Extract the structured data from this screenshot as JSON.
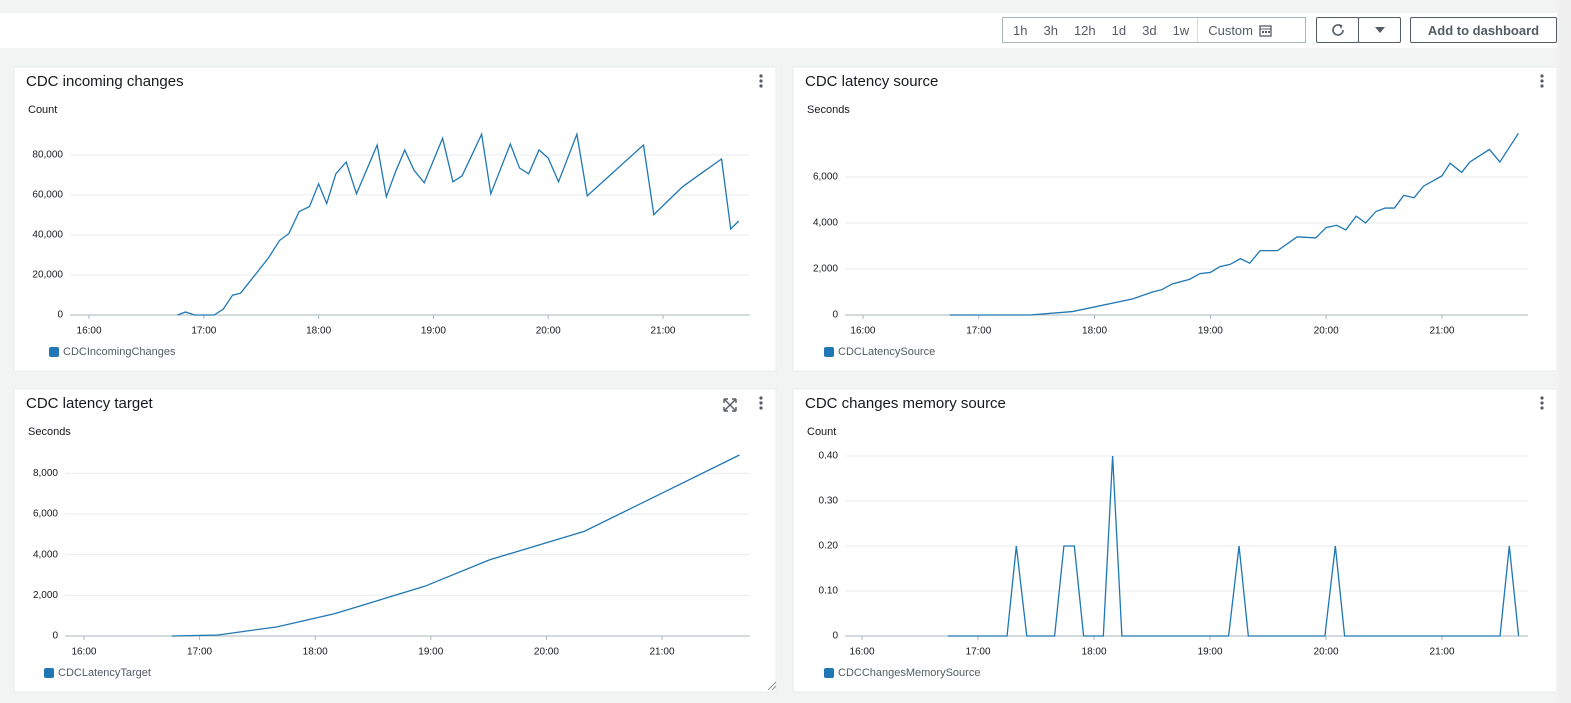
{
  "toolbar": {
    "ranges": [
      "1h",
      "3h",
      "12h",
      "1d",
      "3d",
      "1w"
    ],
    "custom": "Custom",
    "add_button": "Add to dashboard"
  },
  "chart_data": [
    {
      "type": "line",
      "title": "CDC incoming changes",
      "y_label": "Count",
      "x": [
        16.77,
        16.84,
        16.92,
        17.09,
        17.17,
        17.25,
        17.32,
        17.56,
        17.66,
        17.74,
        17.83,
        17.92,
        18.0,
        18.07,
        18.15,
        18.24,
        18.33,
        18.51,
        18.59,
        18.67,
        18.75,
        18.83,
        18.92,
        19.08,
        19.17,
        19.25,
        19.42,
        19.5,
        19.67,
        19.75,
        19.83,
        19.92,
        20.0,
        20.09,
        20.25,
        20.34,
        20.83,
        20.92,
        21.17,
        21.34,
        21.51,
        21.59,
        21.66
      ],
      "series": [
        {
          "name": "CDCIncomingChanges",
          "color": "#1f77b4",
          "values": [
            0,
            1500,
            0,
            0,
            3000,
            9900,
            10900,
            28300,
            37300,
            40700,
            51700,
            54200,
            65600,
            55700,
            70600,
            76500,
            60600,
            85000,
            59100,
            71600,
            82500,
            72500,
            66100,
            88400,
            66600,
            69600,
            90400,
            60600,
            85500,
            73500,
            70600,
            82500,
            78500,
            66600,
            90400,
            59600,
            85000,
            50200,
            64100,
            71100,
            78000,
            43000,
            47000
          ]
        }
      ],
      "xlim": [
        15.834,
        21.758
      ],
      "xticks": [
        {
          "value": 16,
          "label": "16:00"
        },
        {
          "value": 17,
          "label": "17:00"
        },
        {
          "value": 18,
          "label": "18:00"
        },
        {
          "value": 19,
          "label": "19:00"
        },
        {
          "value": 20,
          "label": "20:00"
        },
        {
          "value": 21,
          "label": "21:00"
        }
      ],
      "ylim": [
        0,
        92000
      ],
      "yticks": [
        0,
        {
          "value": 20000,
          "label": "20,000"
        },
        {
          "value": 40000,
          "label": "40,000"
        },
        {
          "value": 60000,
          "label": "60,000"
        },
        {
          "value": 80000,
          "label": "80,000"
        }
      ],
      "grid": true
    },
    {
      "type": "line",
      "title": "CDC latency source",
      "y_label": "Seconds",
      "x": [
        16.75,
        17.44,
        17.81,
        18.33,
        18.5,
        18.58,
        18.67,
        18.82,
        18.91,
        19.0,
        19.08,
        19.17,
        19.26,
        19.34,
        19.43,
        19.58,
        19.75,
        19.91,
        20.0,
        20.09,
        20.17,
        20.26,
        20.34,
        20.43,
        20.51,
        20.59,
        20.67,
        20.76,
        20.84,
        21.0,
        21.07,
        21.17,
        21.24,
        21.41,
        21.5,
        21.66
      ],
      "series": [
        {
          "name": "CDCLatencySource",
          "color": "#1f77b4",
          "values": [
            0,
            0,
            150,
            700,
            1000,
            1100,
            1350,
            1550,
            1800,
            1850,
            2100,
            2200,
            2450,
            2250,
            2800,
            2800,
            3400,
            3350,
            3800,
            3900,
            3700,
            4300,
            4000,
            4500,
            4650,
            4650,
            5200,
            5100,
            5600,
            6050,
            6600,
            6200,
            6650,
            7200,
            6650,
            7900
          ]
        }
      ],
      "xlim": [
        15.845,
        21.743
      ],
      "xticks": [
        {
          "value": 16,
          "label": "16:00"
        },
        {
          "value": 17,
          "label": "17:00"
        },
        {
          "value": 18,
          "label": "18:00"
        },
        {
          "value": 19,
          "label": "19:00"
        },
        {
          "value": 20,
          "label": "20:00"
        },
        {
          "value": 21,
          "label": "21:00"
        }
      ],
      "ylim": [
        0,
        8000
      ],
      "yticks": [
        0,
        {
          "value": 2000,
          "label": "2,000"
        },
        {
          "value": 4000,
          "label": "4,000"
        },
        {
          "value": 6000,
          "label": "6,000"
        }
      ],
      "grid": true
    },
    {
      "type": "line",
      "title": "CDC latency target",
      "y_label": "Seconds",
      "x": [
        16.76,
        17.16,
        17.67,
        18.17,
        18.95,
        19.51,
        20.33,
        21.67
      ],
      "series": [
        {
          "name": "CDCLatencyTarget",
          "color": "#1f77b4",
          "values": [
            0,
            50,
            450,
            1100,
            2450,
            3750,
            5150,
            8900
          ]
        }
      ],
      "xlim": [
        15.836,
        21.761
      ],
      "xticks": [
        {
          "value": 16,
          "label": "16:00"
        },
        {
          "value": 17,
          "label": "17:00"
        },
        {
          "value": 18,
          "label": "18:00"
        },
        {
          "value": 19,
          "label": "19:00"
        },
        {
          "value": 20,
          "label": "20:00"
        },
        {
          "value": 21,
          "label": "21:00"
        }
      ],
      "ylim": [
        0,
        8900
      ],
      "yticks": [
        0,
        {
          "value": 2000,
          "label": "2,000"
        },
        {
          "value": 4000,
          "label": "4,000"
        },
        {
          "value": 6000,
          "label": "6,000"
        },
        {
          "value": 8000,
          "label": "8,000"
        }
      ],
      "grid": true
    },
    {
      "type": "line",
      "title": "CDC changes memory source",
      "y_label": "Count",
      "x": [
        16.74,
        17.25,
        17.33,
        17.42,
        17.66,
        17.74,
        17.83,
        17.91,
        18.08,
        18.16,
        18.24,
        19.16,
        19.25,
        19.33,
        19.99,
        20.08,
        20.16,
        21.5,
        21.58,
        21.66
      ],
      "series": [
        {
          "name": "CDCChangesMemorySource",
          "color": "#1f77b4",
          "values": [
            0,
            0,
            0.2,
            0,
            0,
            0.2,
            0.2,
            0,
            0,
            0.4,
            0,
            0,
            0.2,
            0,
            0,
            0.2,
            0,
            0,
            0.2,
            0
          ]
        }
      ],
      "xlim": [
        15.853,
        21.741
      ],
      "xticks": [
        {
          "value": 16,
          "label": "16:00"
        },
        {
          "value": 17,
          "label": "17:00"
        },
        {
          "value": 18,
          "label": "18:00"
        },
        {
          "value": 19,
          "label": "19:00"
        },
        {
          "value": 20,
          "label": "20:00"
        },
        {
          "value": 21,
          "label": "21:00"
        }
      ],
      "ylim": [
        0,
        0.4
      ],
      "yticks": [
        0,
        {
          "value": 0.1,
          "label": "0.10"
        },
        {
          "value": 0.2,
          "label": "0.20"
        },
        {
          "value": 0.3,
          "label": "0.30"
        },
        {
          "value": 0.4,
          "label": "0.40"
        }
      ],
      "grid": true
    }
  ]
}
